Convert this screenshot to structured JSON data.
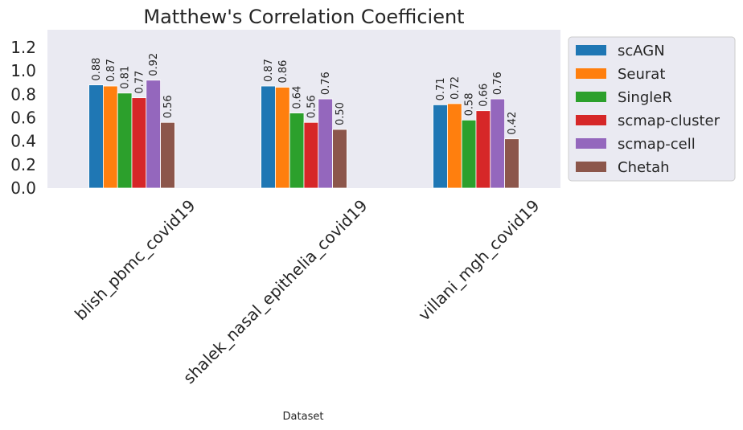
{
  "chart_data": {
    "type": "bar",
    "title": "Matthew's Correlation Coefficient",
    "xlabel": "Dataset",
    "ylabel": "",
    "ylim": [
      0,
      1.35
    ],
    "yticks": [
      "0.0",
      "0.2",
      "0.4",
      "0.6",
      "0.8",
      "1.0",
      "1.2"
    ],
    "ytick_values": [
      0,
      0.2,
      0.4,
      0.6,
      0.8,
      1.0,
      1.2
    ],
    "grid": false,
    "legend_position": "outside-right",
    "categories": [
      "blish_pbmc_covid19",
      "shalek_nasal_epithelia_covid19",
      "villani_mgh_covid19"
    ],
    "series": [
      {
        "name": "scAGN",
        "color": "#1f77b4",
        "values": [
          0.88,
          0.87,
          0.71
        ],
        "labels": [
          "0.88",
          "0.87",
          "0.71"
        ]
      },
      {
        "name": "Seurat",
        "color": "#ff7f0e",
        "values": [
          0.87,
          0.86,
          0.72
        ],
        "labels": [
          "0.87",
          "0.86",
          "0.72"
        ]
      },
      {
        "name": "SingleR",
        "color": "#2ca02c",
        "values": [
          0.81,
          0.64,
          0.58
        ],
        "labels": [
          "0.81",
          "0.64",
          "0.58"
        ]
      },
      {
        "name": "scmap-cluster",
        "color": "#d62728",
        "values": [
          0.77,
          0.56,
          0.66
        ],
        "labels": [
          "0.77",
          "0.56",
          "0.66"
        ]
      },
      {
        "name": "scmap-cell",
        "color": "#9467bd",
        "values": [
          0.92,
          0.76,
          0.76
        ],
        "labels": [
          "0.92",
          "0.76",
          "0.76"
        ]
      },
      {
        "name": "Chetah",
        "color": "#8c564b",
        "values": [
          0.56,
          0.5,
          0.42
        ],
        "labels": [
          "0.56",
          "0.50",
          "0.42"
        ]
      }
    ]
  }
}
